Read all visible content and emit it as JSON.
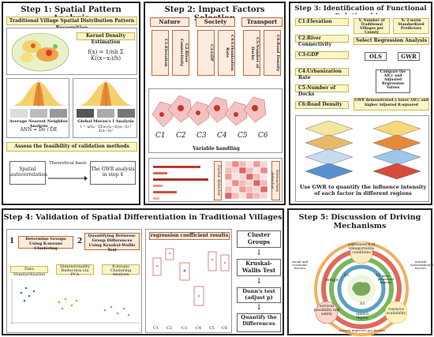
{
  "step1": {
    "title": "Step 1: Spatial Pattern Analysis",
    "subtitle": "Traditional Village Spatial Distribution Pattern Recognition",
    "kde_label": "Kernel Density Estimation",
    "kde_formula": "f(x) = 1/nh Σ K((x−xᵢ)/h)",
    "nna_label": "Average Nearest Neighbor Analysis",
    "nna_formula": "ANN = D̄o / D̄E",
    "moran_label": "Global Moran's I Analysis",
    "moran_formula": "I = n/S₀ · ΣΣwᵢⱼ(xᵢ−x̄)(xⱼ−x̄) / Σ(xᵢ−x̄)²",
    "assess": "Assess the feasibility of validation methods",
    "spatial": "Spatial autocorrelation",
    "theoretical": "Theoretical basis",
    "gwr_step4": "The GWR analysis in step 4"
  },
  "step2": {
    "title": "Step 2: Impact Factors Selection",
    "groups": [
      "Nature",
      "Society",
      "Transport"
    ],
    "factors": [
      "C1:Elevation",
      "C2:River Connectivity",
      "C3:GDP",
      "C4:Urbanization Rate",
      "C5:Number of Docks",
      "C6:Road Density"
    ],
    "maps": [
      "C1",
      "C2",
      "C3",
      "C4",
      "C5",
      "C6"
    ],
    "variable_handling": "Variable handling",
    "factor_detector": "Factor detector",
    "interaction_detector": "Interaction detector"
  },
  "step3": {
    "title": "Step 3: Identification of Functional Relationships",
    "factors": [
      "C1:Elevation",
      "C2:River Connectivity",
      "C3:GDP",
      "C4:Urbanization Rate",
      "C5:Number of Docks",
      "C6:Road Density"
    ],
    "y_label": "Y: Number of Traditional Villages per County",
    "x_label": "X: 2-norm Standardized Predictors",
    "select": "Select Regression Analysis",
    "ols": "OLS",
    "gwr": "GWR",
    "compare": "Compare the AICc and Adjusted Regression Values",
    "result": "GWR demonstrated a lower AICc and higher Adjusted R-squared",
    "caption": "Use GWR to quantify the influence intensity of each factor in different regions"
  },
  "step4": {
    "title": "Step 4: Validation of Spatial Differentiation in Traditional Villages",
    "n1": "1",
    "n2": "2",
    "box1": "Determine Groups Using K-means Clustering",
    "box2": "Quantifying Between-Group Differences Using Kruskal-Wallis Test",
    "standardization": "Data Standardization",
    "pca": "Dimensionality Reduction via PCA",
    "kmeans": "K-means Clustering Analysis",
    "coef": "regression coefficient results",
    "cluster": "Cluster Groups",
    "kruskal": "Kruskal-Wallis Test",
    "dunn": "Dunn's test (adjust p)",
    "quantify": "Quantify the Differences",
    "c_labels": [
      "C1",
      "C2",
      "C3",
      "C4",
      "C5",
      "C6"
    ]
  },
  "step5": {
    "title": "Step 5: Discussion of Driving Mechanisms",
    "outer": [
      "convenience of transportation conditions",
      "survival possibility and safety",
      "resource availability"
    ],
    "ring": [
      "refuge",
      "inter-provincial regions",
      "upland region"
    ],
    "outside": [
      "social and economic factors",
      "natural environmental factors",
      "society improves pro-factors"
    ],
    "s_labels": [
      "S1",
      "S2",
      "S3"
    ]
  }
}
